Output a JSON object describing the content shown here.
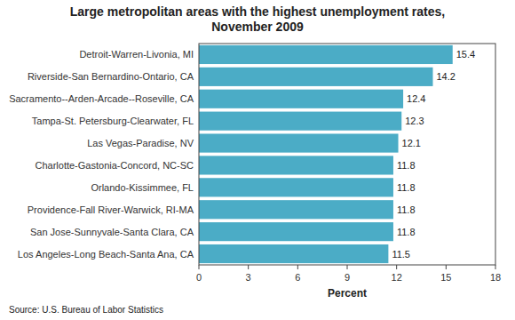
{
  "chart_data": {
    "type": "bar",
    "orientation": "horizontal",
    "title": "Large metropolitan areas with the highest unemployment rates,\nNovember 2009",
    "categories": [
      "Los Angeles-Long Beach-Santa Ana, CA",
      "San Jose-Sunnyvale-Santa Clara, CA",
      "Providence-Fall River-Warwick, RI-MA",
      "Orlando-Kissimmee, FL",
      "Charlotte-Gastonia-Concord, NC-SC",
      "Las Vegas-Paradise, NV",
      "Tampa-St. Petersburg-Clearwater, FL",
      "Sacramento--Arden-Arcade--Roseville, CA",
      "Riverside-San Bernardino-Ontario, CA",
      "Detroit-Warren-Livonia, MI"
    ],
    "values": [
      11.5,
      11.8,
      11.8,
      11.8,
      11.8,
      12.1,
      12.3,
      12.4,
      14.2,
      15.4
    ],
    "color": "#4BACC6",
    "xlim": [
      0,
      18
    ],
    "xticks": [
      0,
      3,
      6,
      9,
      12,
      15,
      18
    ],
    "xlabel": "Percent",
    "source": "Source: U.S. Bureau of Labor Statistics",
    "data_labels": true
  }
}
